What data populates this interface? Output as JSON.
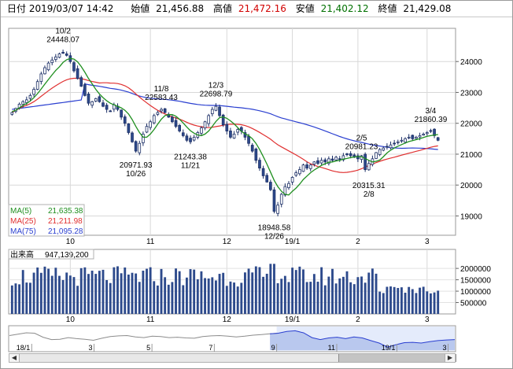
{
  "header": {
    "datetime": "日付 2019/03/07 14:42",
    "open_label": "始値",
    "open_value": "21,456.88",
    "high_label": "高値",
    "high_value": "21,472.16",
    "low_label": "安値",
    "low_value": "21,402.12",
    "close_label": "終値",
    "close_value": "21,429.08"
  },
  "colors": {
    "up": "#ffffff",
    "down": "#2d4a8c",
    "outline": "#1c2f66",
    "ma5": "#1f8f1f",
    "ma25": "#e03030",
    "ma75": "#2a3fd0",
    "volume": "#2d4a8c",
    "overview_fill": "#b9c8ee",
    "overview_line": "#2a3fd0"
  },
  "legend": {
    "ma5_label": "MA(5)",
    "ma5_value": "21,635.38",
    "ma25_label": "MA(25)",
    "ma25_value": "21,211.98",
    "ma75_label": "MA(75)",
    "ma75_value": "21,095.28"
  },
  "volume_panel": {
    "label": "出来高",
    "value": "947,139,200",
    "y_ticks": [
      {
        "v": 2000000,
        "label": "2000000"
      },
      {
        "v": 1500000,
        "label": "1500000"
      },
      {
        "v": 1000000,
        "label": "1000000"
      },
      {
        "v": 500000,
        "label": "500000"
      }
    ]
  },
  "chart_data": {
    "type": "candlestick",
    "y_ticks": [
      {
        "v": 24000,
        "label": "24000"
      },
      {
        "v": 23000,
        "label": "23000"
      },
      {
        "v": 22000,
        "label": "22000"
      },
      {
        "v": 21000,
        "label": "21000"
      },
      {
        "v": 20000,
        "label": "20000"
      },
      {
        "v": 19000,
        "label": "19000"
      }
    ],
    "x_ticks": [
      {
        "i": 16,
        "label": "10"
      },
      {
        "i": 38,
        "label": "11"
      },
      {
        "i": 59,
        "label": "12"
      },
      {
        "i": 77,
        "label": "19/1"
      },
      {
        "i": 95,
        "label": "2"
      },
      {
        "i": 114,
        "label": "3"
      }
    ],
    "annotations": [
      {
        "i": 14,
        "v": 24448.07,
        "lines": [
          "10/2",
          "24448.07"
        ],
        "pos": "above"
      },
      {
        "i": 34,
        "v": 20971.93,
        "lines": [
          "20971.93",
          "10/26"
        ],
        "pos": "below"
      },
      {
        "i": 41,
        "v": 22583.43,
        "lines": [
          "11/8",
          "22583.43"
        ],
        "pos": "above"
      },
      {
        "i": 49,
        "v": 21243.38,
        "lines": [
          "21243.38",
          "11/21"
        ],
        "pos": "below"
      },
      {
        "i": 56,
        "v": 22698.79,
        "lines": [
          "12/3",
          "22698.79"
        ],
        "pos": "above"
      },
      {
        "i": 72,
        "v": 18948.58,
        "lines": [
          "18948.58",
          "12/26"
        ],
        "pos": "below"
      },
      {
        "i": 96,
        "v": 20981.23,
        "lines": [
          "2/5",
          "20981.23"
        ],
        "pos": "above"
      },
      {
        "i": 98,
        "v": 20315.31,
        "lines": [
          "20315.31",
          "2/8"
        ],
        "pos": "below"
      },
      {
        "i": 115,
        "v": 21860.39,
        "lines": [
          "3/4",
          "21860.39"
        ],
        "pos": "above"
      }
    ],
    "closes": [
      22350,
      22480,
      22620,
      22700,
      22760,
      22900,
      23100,
      23350,
      23600,
      23800,
      23950,
      24050,
      24150,
      24250,
      24270,
      24200,
      24000,
      23700,
      23450,
      23200,
      22900,
      22650,
      22700,
      22800,
      22700,
      22550,
      22450,
      22400,
      22600,
      22450,
      22200,
      22000,
      21700,
      21400,
      21100,
      21350,
      21650,
      21900,
      22050,
      22250,
      22350,
      22450,
      22350,
      22200,
      22050,
      21900,
      21750,
      21600,
      21450,
      21400,
      21550,
      21700,
      21850,
      22050,
      22250,
      22450,
      22550,
      22250,
      21950,
      21750,
      21550,
      21650,
      21800,
      21750,
      21550,
      21350,
      21100,
      20800,
      20550,
      20300,
      20100,
      19850,
      19150,
      19350,
      19700,
      19950,
      20050,
      20250,
      20400,
      20500,
      20650,
      20550,
      20650,
      20750,
      20700,
      20800,
      20750,
      20850,
      20800,
      20900,
      20850,
      20950,
      21000,
      20950,
      20900,
      20850,
      20950,
      20500,
      20700,
      20850,
      21050,
      21150,
      21200,
      21250,
      21300,
      21350,
      21400,
      21450,
      21500,
      21550,
      21500,
      21550,
      21600,
      21650,
      21700,
      21750,
      21600,
      21450
    ],
    "ma5": [
      22380,
      22420,
      22500,
      22580,
      22640,
      22720,
      22830,
      22960,
      23110,
      23270,
      23420,
      23570,
      23710,
      23830,
      23970,
      24060,
      24100,
      24080,
      23990,
      23840,
      23650,
      23450,
      23280,
      23100,
      22950,
      22830,
      22730,
      22650,
      22600,
      22550,
      22500,
      22420,
      22300,
      22120,
      21900,
      21700,
      21550,
      21550,
      21650,
      21800,
      21970,
      22130,
      22250,
      22280,
      22280,
      22230,
      22130,
      22010,
      21880,
      21760,
      21680,
      21620,
      21600,
      21650,
      21750,
      21900,
      22060,
      22180,
      22210,
      22160,
      22080,
      21980,
      21860,
      21740,
      21660,
      21600,
      21500,
      21350,
      21150,
      20920,
      20680,
      20420,
      20150,
      19950,
      19800,
      19700,
      19680,
      19800,
      19900,
      20030,
      20180,
      20290,
      20400,
      20490,
      20560,
      20640,
      20690,
      20740,
      20750,
      20780,
      20800,
      20840,
      20860,
      20890,
      20910,
      20920,
      20920,
      20860,
      20800,
      20750,
      20770,
      20810,
      20920,
      21040,
      21130,
      21200,
      21260,
      21310,
      21360,
      21410,
      21440,
      21470,
      21500,
      21540,
      21580,
      21600,
      21620,
      21635
    ]
  },
  "overview": {
    "x_labels": [
      {
        "f": 0.05,
        "label": "18/1"
      },
      {
        "f": 0.19,
        "label": "3"
      },
      {
        "f": 0.32,
        "label": "5"
      },
      {
        "f": 0.46,
        "label": "7"
      },
      {
        "f": 0.6,
        "label": "9"
      },
      {
        "f": 0.735,
        "label": "11"
      },
      {
        "f": 0.87,
        "label": "19/1"
      },
      {
        "f": 0.985,
        "label": "3"
      }
    ],
    "values": [
      22800,
      23200,
      23600,
      23500,
      22300,
      21600,
      21700,
      22200,
      21900,
      21700,
      21400,
      22000,
      22500,
      22700,
      22800,
      22400,
      22200,
      22600,
      22500,
      22200,
      22300,
      22100,
      22000,
      22500,
      22700,
      22800,
      22600,
      22400,
      22600,
      22900,
      23100,
      23300,
      23500,
      24000,
      24200,
      23600,
      22200,
      21600,
      22100,
      22300,
      21900,
      22400,
      22100,
      21300,
      20600,
      19400,
      20100,
      20700,
      20800,
      20600,
      21000,
      21300,
      21500,
      21600
    ]
  }
}
